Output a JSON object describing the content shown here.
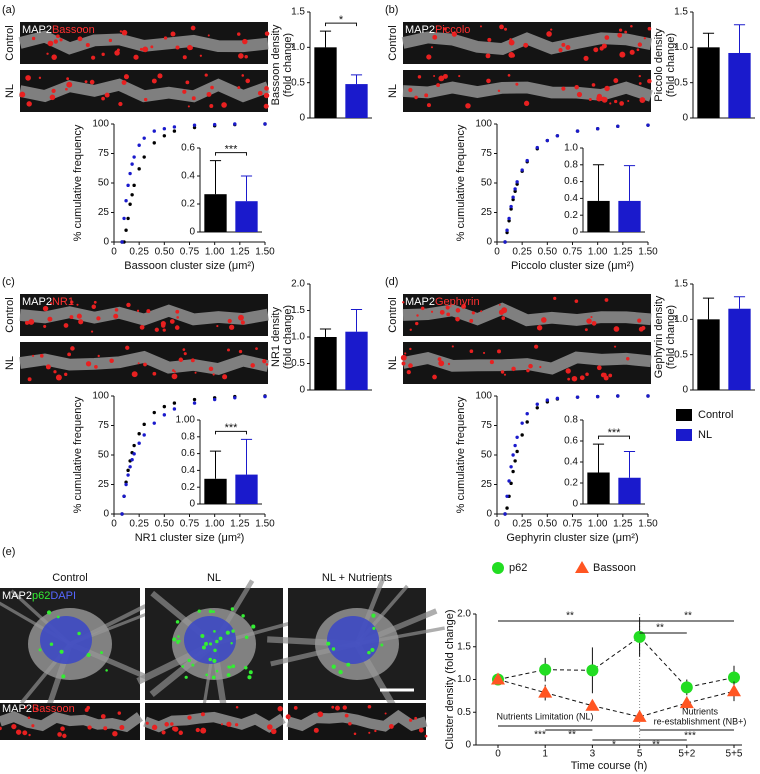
{
  "panels": [
    {
      "label": "(a)",
      "rows": [
        "Control",
        "NL"
      ],
      "stain": "MAP2",
      "marker": "Bassoon"
    },
    {
      "label": "(b)",
      "rows": [
        "Control",
        "NL"
      ],
      "stain": "MAP2",
      "marker": "Piccolo"
    },
    {
      "label": "(c)",
      "rows": [
        "Control",
        "NL"
      ],
      "stain": "MAP2",
      "marker": "NR1"
    },
    {
      "label": "(d)",
      "rows": [
        "Control",
        "NL"
      ],
      "stain": "MAP2",
      "marker": "Gephyrin"
    },
    {
      "label": "(e)",
      "columns": [
        "Control",
        "NL",
        "NL + Nutrients"
      ],
      "stain": [
        "MAP2",
        "p62",
        "DAPI"
      ],
      "strip": [
        "MAP2",
        "Bassoon"
      ]
    }
  ],
  "chart_data": [
    {
      "type": "bar",
      "ylabel": [
        "Bassoon density",
        "(fold change)"
      ],
      "ylim": [
        0,
        1.5
      ],
      "yticks": [
        0,
        0.5,
        {
          "value": 1,
          "label": "1.0"
        },
        1.5
      ],
      "annotation": "*",
      "series": [
        {
          "name": "Control",
          "color": "#000000",
          "values": [
            1.0
          ],
          "errors": [
            0.23
          ]
        },
        {
          "name": "NL",
          "color": "#1a1acc",
          "values": [
            0.48
          ],
          "errors": [
            0.13
          ]
        }
      ]
    },
    {
      "type": "scatter",
      "xlabel": "Bassoon cluster size (μm²)",
      "ylabel": "% cumulative frequency",
      "xlim": [
        0,
        1.5
      ],
      "ylim": [
        0,
        100
      ],
      "xticks": [
        0,
        0.25,
        {
          "value": 0.5,
          "label": "0.50"
        },
        0.75,
        {
          "value": 1,
          "label": "1.00"
        },
        1.25,
        {
          "value": 1.5,
          "label": "1.50"
        }
      ],
      "yticks": [
        0,
        25,
        50,
        75,
        100
      ],
      "x": [
        0.08,
        0.1,
        0.12,
        0.14,
        0.16,
        0.18,
        0.2,
        0.25,
        0.3,
        0.4,
        0.5,
        0.6,
        0.8,
        1.0,
        1.2,
        1.5
      ],
      "series": [
        {
          "name": "Control",
          "color": "#000000",
          "values": [
            0,
            0,
            10,
            20,
            32,
            40,
            48,
            62,
            72,
            84,
            90,
            94,
            97,
            98.5,
            99.5,
            100
          ]
        },
        {
          "name": "NL",
          "color": "#1a1acc",
          "values": [
            0,
            20,
            35,
            48,
            58,
            66,
            72,
            82,
            88,
            94,
            96,
            97.5,
            99,
            99.5,
            100,
            100
          ]
        }
      ]
    },
    {
      "type": "bar",
      "ylim": [
        0,
        0.6
      ],
      "yticks": [
        0,
        0.2,
        0.4,
        0.6
      ],
      "annotation": "***",
      "series": [
        {
          "name": "Control",
          "color": "#000000",
          "values": [
            0.27
          ],
          "errors": [
            0.24
          ]
        },
        {
          "name": "NL",
          "color": "#1a1acc",
          "values": [
            0.22
          ],
          "errors": [
            0.18
          ]
        }
      ]
    },
    {
      "type": "bar",
      "ylabel": [
        "Piccolo density",
        "(fold change)"
      ],
      "ylim": [
        0,
        1.5
      ],
      "yticks": [
        0,
        0.5,
        {
          "value": 1,
          "label": "1.0"
        },
        1.5
      ],
      "series": [
        {
          "name": "Control",
          "color": "#000000",
          "values": [
            1.0
          ],
          "errors": [
            0.2
          ]
        },
        {
          "name": "NL",
          "color": "#1a1acc",
          "values": [
            0.92
          ],
          "errors": [
            0.4
          ]
        }
      ]
    },
    {
      "type": "scatter",
      "xlabel": "Piccolo cluster size (μm²)",
      "ylabel": "% cumulative frequency",
      "xlim": [
        0,
        1.5
      ],
      "ylim": [
        0,
        100
      ],
      "xticks": [
        0,
        0.25,
        {
          "value": 0.5,
          "label": "0.50"
        },
        0.75,
        {
          "value": 1,
          "label": "1.00"
        },
        1.25,
        {
          "value": 1.5,
          "label": "1.50"
        }
      ],
      "yticks": [
        0,
        25,
        50,
        75,
        100
      ],
      "x": [
        0.08,
        0.1,
        0.12,
        0.14,
        0.16,
        0.18,
        0.2,
        0.25,
        0.3,
        0.4,
        0.5,
        0.6,
        0.8,
        1.0,
        1.2,
        1.5
      ],
      "series": [
        {
          "name": "Control",
          "color": "#000000",
          "values": [
            0,
            8,
            18,
            28,
            36,
            43,
            49,
            60,
            68,
            79,
            86,
            90,
            94,
            96,
            98,
            99
          ]
        },
        {
          "name": "NL",
          "color": "#1a1acc",
          "values": [
            0,
            10,
            20,
            30,
            38,
            45,
            51,
            61,
            69,
            80,
            86,
            90,
            94,
            96,
            98,
            99
          ]
        }
      ]
    },
    {
      "type": "bar",
      "ylim": [
        0,
        1
      ],
      "yticks": [
        0,
        0.2,
        0.4,
        0.6,
        0.8,
        {
          "value": 1,
          "label": "1.0"
        }
      ],
      "series": [
        {
          "name": "Control",
          "color": "#000000",
          "values": [
            0.37
          ],
          "errors": [
            0.43
          ]
        },
        {
          "name": "NL",
          "color": "#1a1acc",
          "values": [
            0.37
          ],
          "errors": [
            0.42
          ]
        }
      ]
    },
    {
      "type": "bar",
      "ylabel": [
        "NR1 density",
        "(fold change)"
      ],
      "ylim": [
        0,
        2
      ],
      "yticks": [
        0,
        0.5,
        {
          "value": 1,
          "label": "1.0"
        },
        1.5,
        {
          "value": 2,
          "label": "2.0"
        }
      ],
      "series": [
        {
          "name": "Control",
          "color": "#000000",
          "values": [
            1.0
          ],
          "errors": [
            0.15
          ]
        },
        {
          "name": "NL",
          "color": "#1a1acc",
          "values": [
            1.1
          ],
          "errors": [
            0.42
          ]
        }
      ]
    },
    {
      "type": "scatter",
      "xlabel": "NR1 cluster size (μm²)",
      "ylabel": "% cumulative frequency",
      "xlim": [
        0,
        1.5
      ],
      "ylim": [
        0,
        100
      ],
      "xticks": [
        0,
        0.25,
        {
          "value": 0.5,
          "label": "0.50"
        },
        0.75,
        {
          "value": 1,
          "label": "1.00"
        },
        1.25,
        {
          "value": 1.5,
          "label": "1.50"
        }
      ],
      "yticks": [
        0,
        25,
        50,
        75,
        100
      ],
      "x": [
        0.08,
        0.1,
        0.12,
        0.14,
        0.16,
        0.18,
        0.2,
        0.25,
        0.3,
        0.4,
        0.5,
        0.6,
        0.8,
        1.0,
        1.2,
        1.5
      ],
      "series": [
        {
          "name": "Control",
          "color": "#000000",
          "values": [
            0,
            15,
            27,
            37,
            45,
            52,
            58,
            68,
            76,
            86,
            91,
            94,
            97,
            98.5,
            99.5,
            100
          ]
        },
        {
          "name": "NL",
          "color": "#1a1acc",
          "values": [
            0,
            15,
            25,
            33,
            40,
            46,
            51,
            60,
            67,
            77,
            84,
            89,
            94,
            97,
            98.5,
            99.5
          ]
        }
      ]
    },
    {
      "type": "bar",
      "ylim": [
        0,
        1
      ],
      "yticks": [
        0,
        0.2,
        0.4,
        0.6,
        0.8,
        {
          "value": 1,
          "label": "1.00"
        }
      ],
      "annotation": "***",
      "series": [
        {
          "name": "Control",
          "color": "#000000",
          "values": [
            0.3
          ],
          "errors": [
            0.33
          ]
        },
        {
          "name": "NL",
          "color": "#1a1acc",
          "values": [
            0.35
          ],
          "errors": [
            0.42
          ]
        }
      ]
    },
    {
      "type": "bar",
      "ylabel": [
        "Gephyrin density",
        "(fold change)"
      ],
      "ylim": [
        0,
        1.5
      ],
      "yticks": [
        0,
        0.5,
        {
          "value": 1,
          "label": "1.0"
        },
        1.5
      ],
      "series": [
        {
          "name": "Control",
          "color": "#000000",
          "values": [
            1.0
          ],
          "errors": [
            0.3
          ]
        },
        {
          "name": "NL",
          "color": "#1a1acc",
          "values": [
            1.15
          ],
          "errors": [
            0.17
          ]
        }
      ]
    },
    {
      "type": "scatter",
      "xlabel": "Gephyrin cluster size (μm²)",
      "ylabel": "% cumulative frequency",
      "xlim": [
        0,
        1.5
      ],
      "ylim": [
        0,
        100
      ],
      "xticks": [
        0,
        0.25,
        {
          "value": 0.5,
          "label": "0.50"
        },
        0.75,
        {
          "value": 1,
          "label": "1.00"
        },
        1.25,
        {
          "value": 1.5,
          "label": "1.50"
        }
      ],
      "yticks": [
        0,
        25,
        50,
        75,
        100
      ],
      "x": [
        0.08,
        0.1,
        0.12,
        0.14,
        0.16,
        0.18,
        0.2,
        0.25,
        0.3,
        0.4,
        0.5,
        0.6,
        0.8,
        1.0,
        1.2,
        1.5
      ],
      "series": [
        {
          "name": "Control",
          "color": "#000000",
          "values": [
            0,
            5,
            15,
            26,
            36,
            45,
            53,
            67,
            78,
            90,
            95,
            97.5,
            99,
            99.5,
            100,
            100
          ]
        },
        {
          "name": "NL",
          "color": "#1a1acc",
          "values": [
            0,
            15,
            28,
            40,
            50,
            58,
            65,
            77,
            85,
            93,
            96.5,
            98,
            99,
            99.5,
            100,
            100
          ]
        }
      ]
    },
    {
      "type": "bar",
      "ylim": [
        0,
        0.8
      ],
      "yticks": [
        0,
        0.2,
        0.4,
        0.6,
        0.8
      ],
      "annotation": "***",
      "series": [
        {
          "name": "Control",
          "color": "#000000",
          "values": [
            0.3
          ],
          "errors": [
            0.27
          ]
        },
        {
          "name": "NL",
          "color": "#1a1acc",
          "values": [
            0.25
          ],
          "errors": [
            0.25
          ]
        }
      ]
    },
    {
      "type": "line",
      "xlabel": "Time course (h)",
      "ylabel": "Cluster density (fold change)",
      "categories": [
        "0",
        "1",
        "3",
        "5",
        "5+2",
        "5+5"
      ],
      "ylim": [
        0,
        2
      ],
      "yticks": [
        0,
        0.5,
        {
          "value": 1,
          "label": "1.0"
        },
        1.5,
        {
          "value": 2,
          "label": "2.0"
        }
      ],
      "series": [
        {
          "name": "p62",
          "color": "#22dd22",
          "marker": "circle",
          "values": [
            1.0,
            1.15,
            1.14,
            1.65,
            0.88,
            1.03
          ],
          "errors": [
            0.02,
            0.18,
            0.35,
            0.3,
            0.12,
            0.18
          ]
        },
        {
          "name": "Bassoon",
          "color": "#ff5522",
          "marker": "triangle",
          "values": [
            1.0,
            0.8,
            0.6,
            0.43,
            0.64,
            0.82
          ],
          "errors": [
            0.03,
            0.12,
            0.05,
            0.04,
            0.1,
            0.15
          ]
        }
      ],
      "annotations": [
        "**",
        "**",
        "**",
        "***",
        "**",
        "*",
        "**",
        "***",
        "Nutrients Limitation (NL)",
        "Nutrients",
        "re-establishment (NB+)"
      ]
    }
  ]
}
